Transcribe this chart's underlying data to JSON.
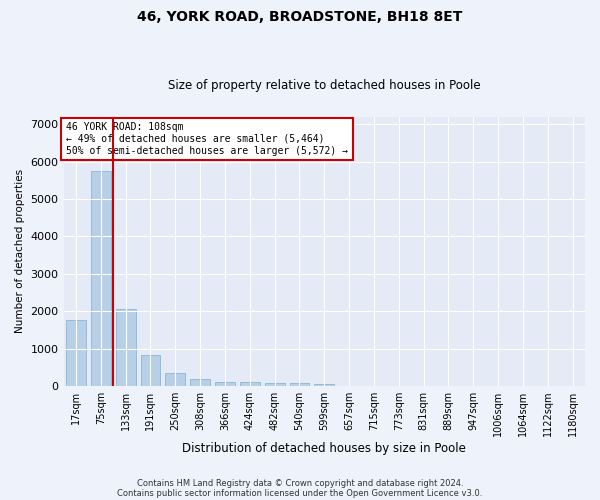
{
  "title1": "46, YORK ROAD, BROADSTONE, BH18 8ET",
  "title2": "Size of property relative to detached houses in Poole",
  "xlabel": "Distribution of detached houses by size in Poole",
  "ylabel": "Number of detached properties",
  "categories": [
    "17sqm",
    "75sqm",
    "133sqm",
    "191sqm",
    "250sqm",
    "308sqm",
    "366sqm",
    "424sqm",
    "482sqm",
    "540sqm",
    "599sqm",
    "657sqm",
    "715sqm",
    "773sqm",
    "831sqm",
    "889sqm",
    "947sqm",
    "1006sqm",
    "1064sqm",
    "1122sqm",
    "1180sqm"
  ],
  "values": [
    1780,
    5750,
    2060,
    820,
    340,
    195,
    120,
    105,
    95,
    70,
    55,
    0,
    0,
    0,
    0,
    0,
    0,
    0,
    0,
    0,
    0
  ],
  "bar_color": "#b8cfe8",
  "bar_edge_color": "#7aafd4",
  "vline_x_index": 1.5,
  "vline_color": "#cc0000",
  "annotation_text": "46 YORK ROAD: 108sqm\n← 49% of detached houses are smaller (5,464)\n50% of semi-detached houses are larger (5,572) →",
  "annotation_box_color": "#ffffff",
  "annotation_box_edge": "#cc0000",
  "ylim": [
    0,
    7200
  ],
  "yticks": [
    0,
    1000,
    2000,
    3000,
    4000,
    5000,
    6000,
    7000
  ],
  "footer1": "Contains HM Land Registry data © Crown copyright and database right 2024.",
  "footer2": "Contains public sector information licensed under the Open Government Licence v3.0.",
  "bg_color": "#eef2fb",
  "plot_bg_color": "#e4eaf6",
  "grid_color": "#ffffff",
  "title1_fontsize": 10,
  "title2_fontsize": 8.5,
  "xlabel_fontsize": 8.5,
  "ylabel_fontsize": 7.5,
  "tick_fontsize": 7,
  "annotation_fontsize": 7,
  "footer_fontsize": 6
}
